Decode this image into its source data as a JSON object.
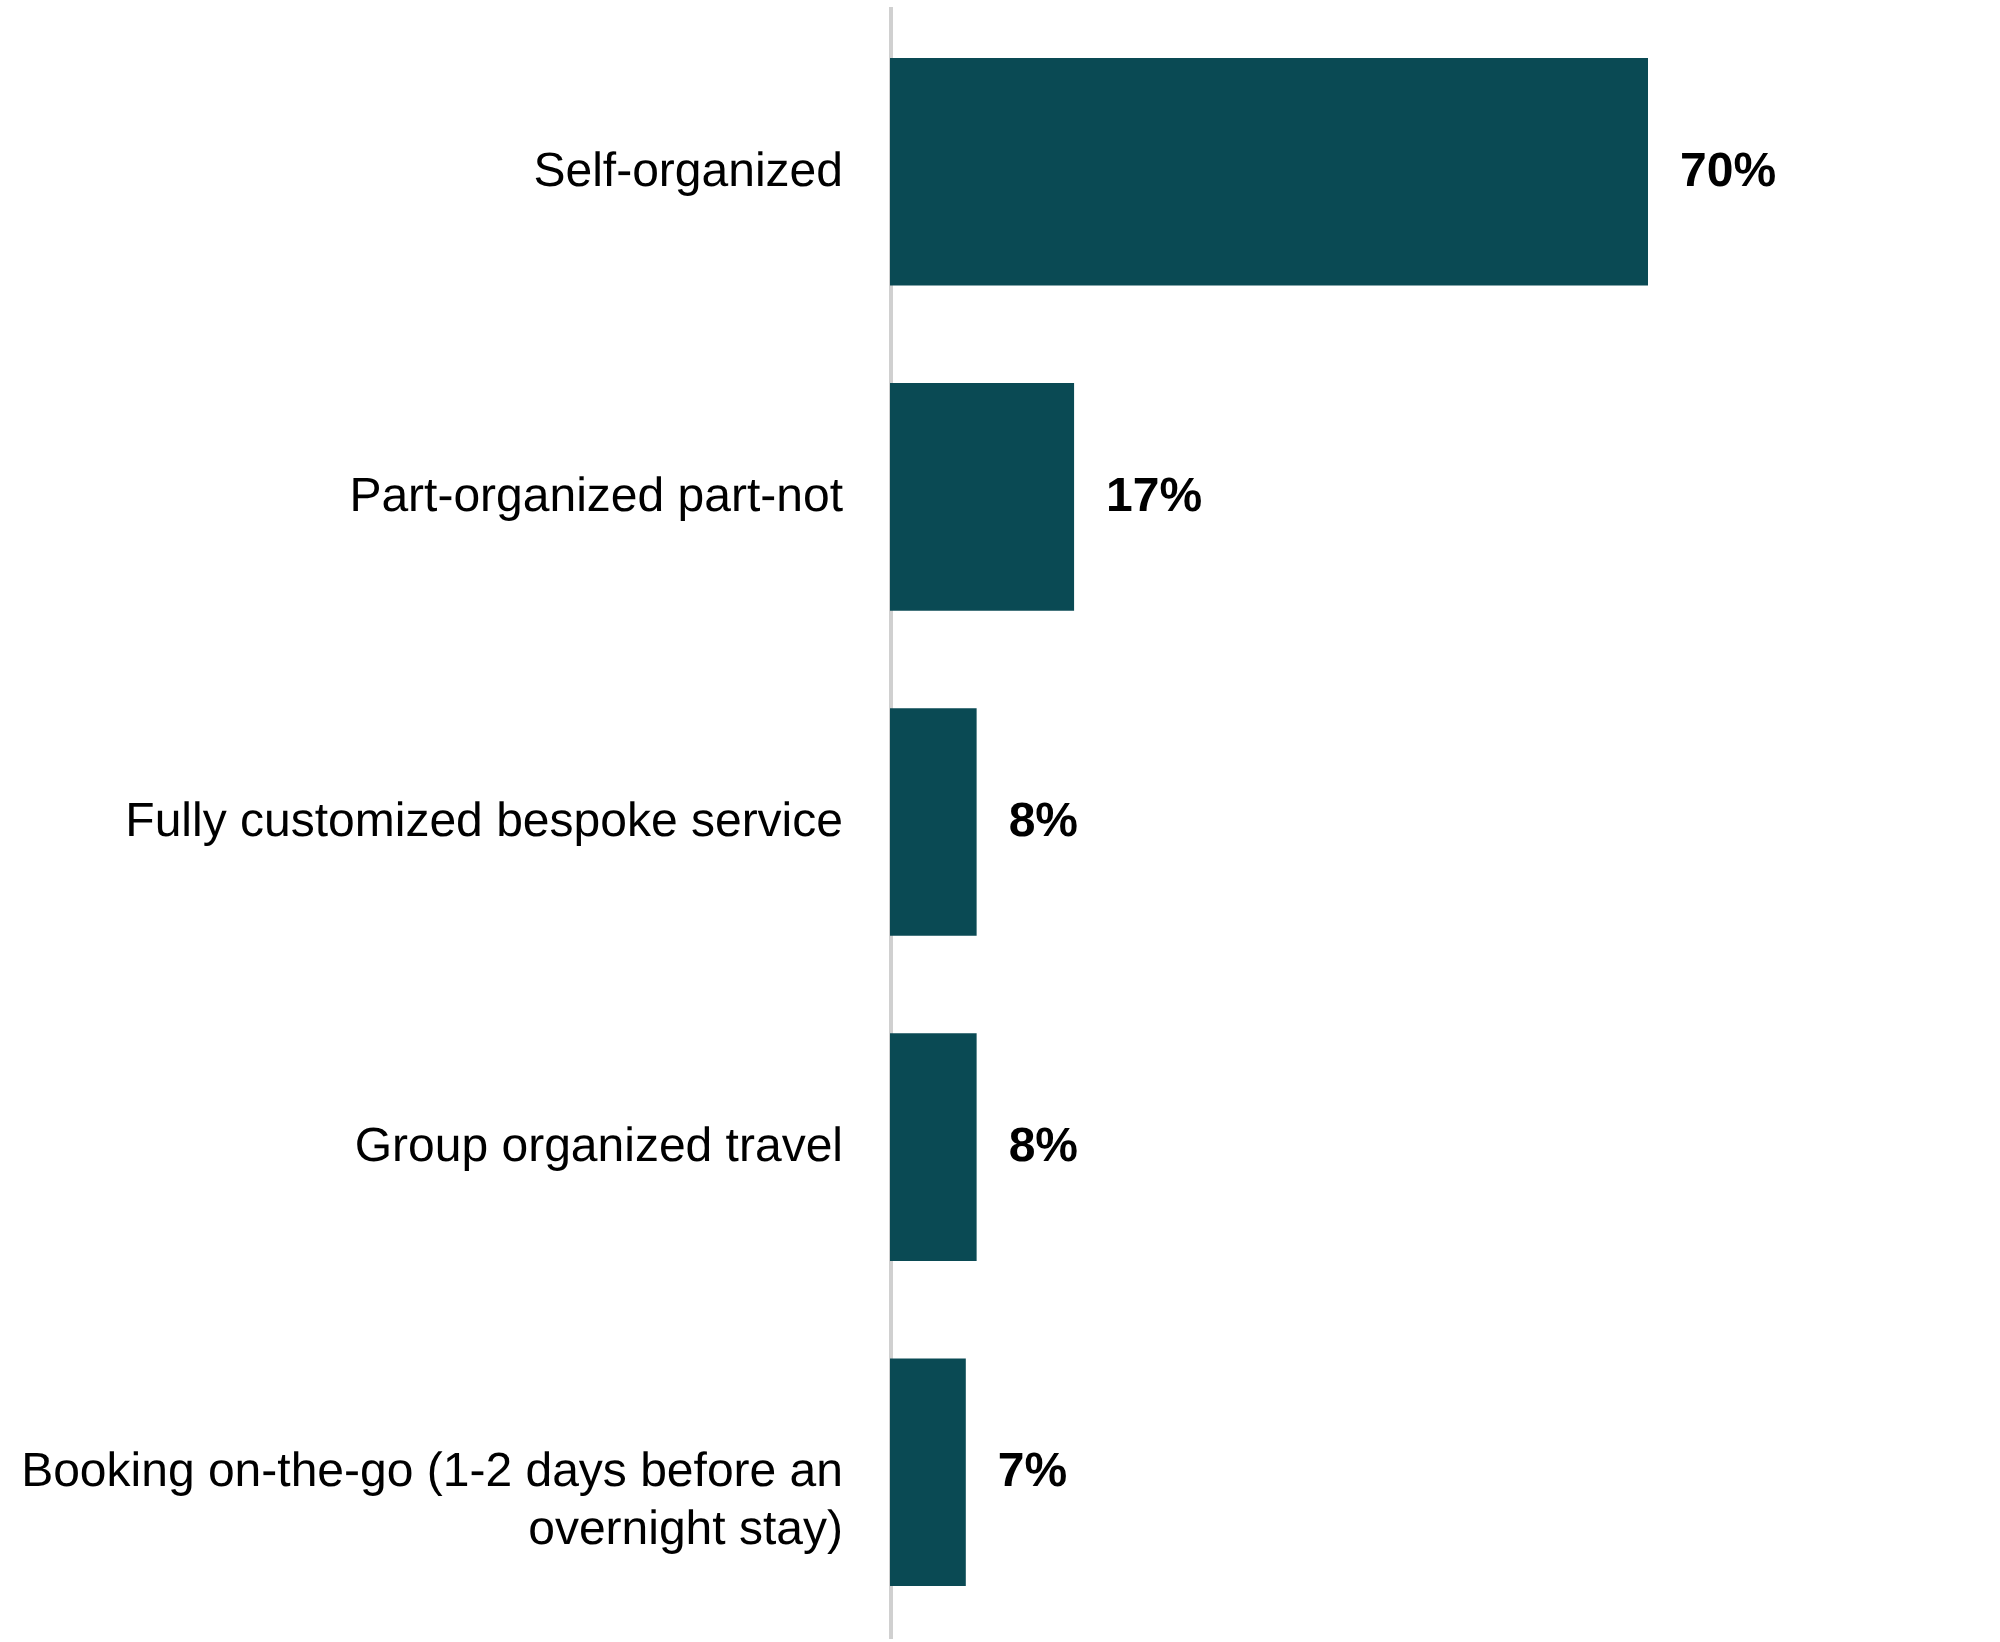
{
  "chart_data": {
    "type": "bar",
    "orientation": "horizontal",
    "categories": [
      "Self-organized",
      "Part-organized part-not",
      "Fully customized bespoke service",
      "Group organized travel",
      "Booking on-the-go (1-2 days before an overnight stay)"
    ],
    "values": [
      70,
      17,
      8,
      8,
      7
    ],
    "value_labels": [
      "70%",
      "17%",
      "8%",
      "8%",
      "7%"
    ],
    "color": "#0a4a54"
  }
}
